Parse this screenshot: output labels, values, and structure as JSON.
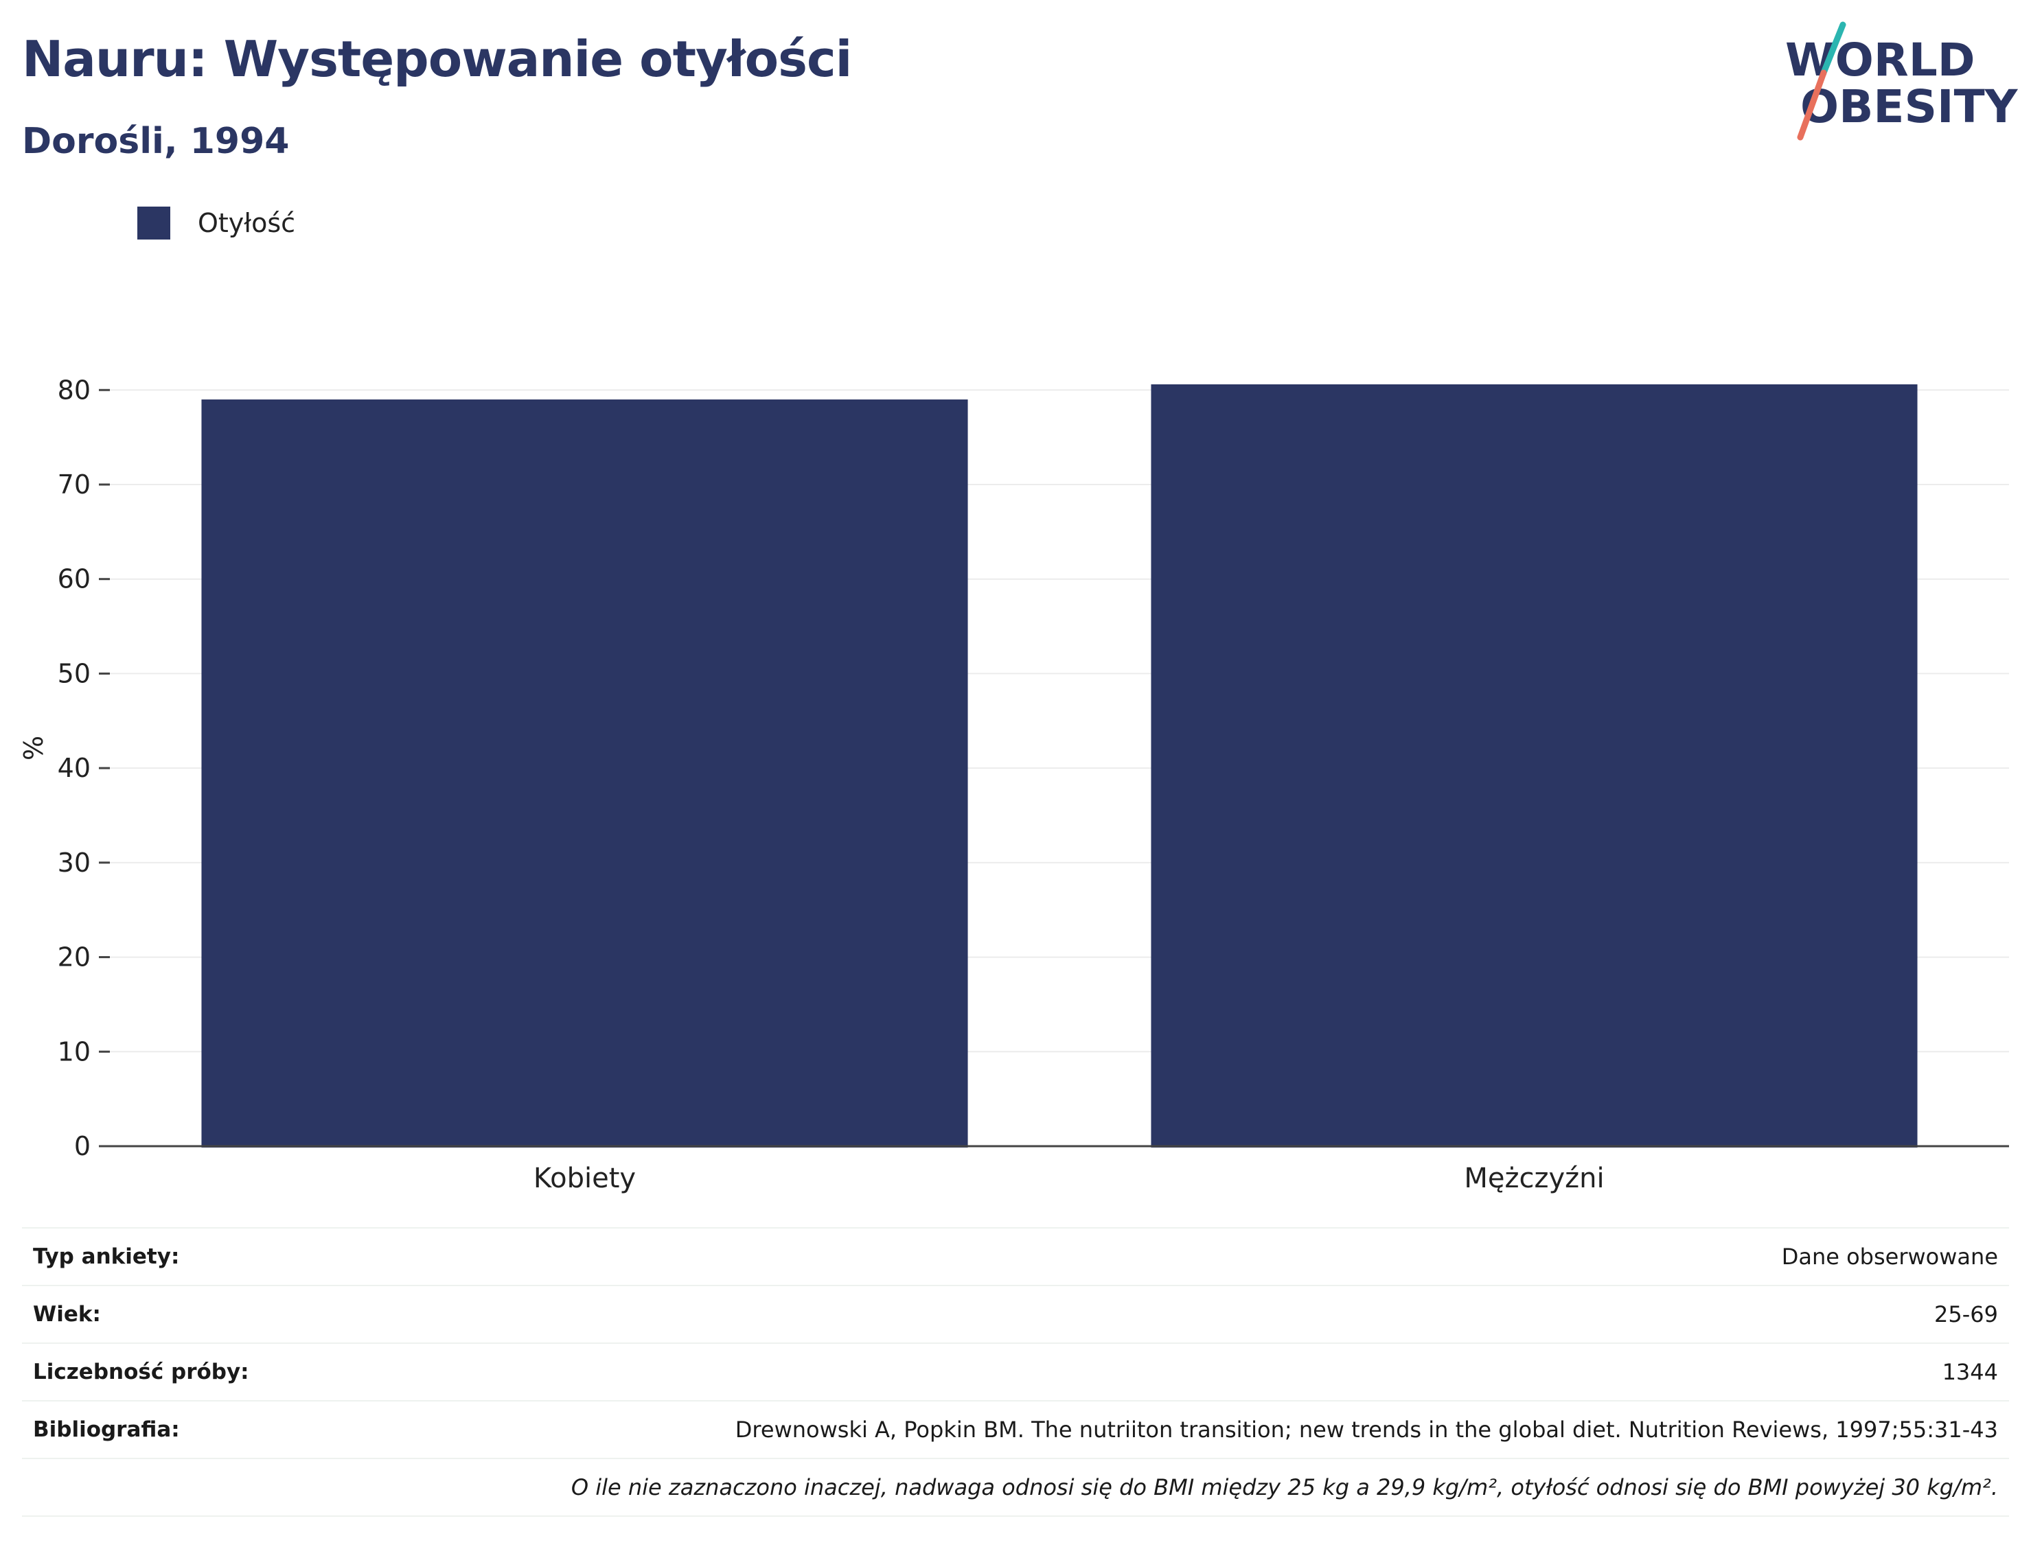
{
  "header": {
    "title": "Nauru: Występowanie otyłości",
    "subtitle": "Dorośli, 1994"
  },
  "logo": {
    "line1": "WORLD",
    "line2": "OBESITY",
    "colors": {
      "text": "#2b3663",
      "slash_top": "#2bb5b0",
      "slash_bottom": "#e8705c"
    }
  },
  "legend": {
    "items": [
      {
        "label": "Otyłość",
        "color": "#2b3663"
      }
    ]
  },
  "chart_data": {
    "type": "bar",
    "categories": [
      "Kobiety",
      "Mężczyźni"
    ],
    "series": [
      {
        "name": "Otyłość",
        "values": [
          79.0,
          80.6
        ],
        "color": "#2b3663"
      }
    ],
    "ylabel": "%",
    "xlabel": "",
    "ylim": [
      0,
      80.6
    ],
    "yticks": [
      0,
      10,
      20,
      30,
      40,
      50,
      60,
      70,
      80
    ],
    "grid": true,
    "legend_position": "top-left"
  },
  "info": {
    "rows": [
      {
        "key": "Typ ankiety:",
        "value": "Dane obserwowane"
      },
      {
        "key": "Wiek:",
        "value": "25-69"
      },
      {
        "key": "Liczebność próby:",
        "value": "1344"
      },
      {
        "key": "Bibliografia:",
        "value": "Drewnowski A, Popkin BM. The nutriiton transition; new trends in the global diet. Nutrition Reviews, 1997;55:31-43"
      }
    ],
    "note": "O ile nie zaznaczono inaczej, nadwaga odnosi się do BMI między 25 kg a 29,9 kg/m², otyłość odnosi się do BMI powyżej 30 kg/m²."
  }
}
